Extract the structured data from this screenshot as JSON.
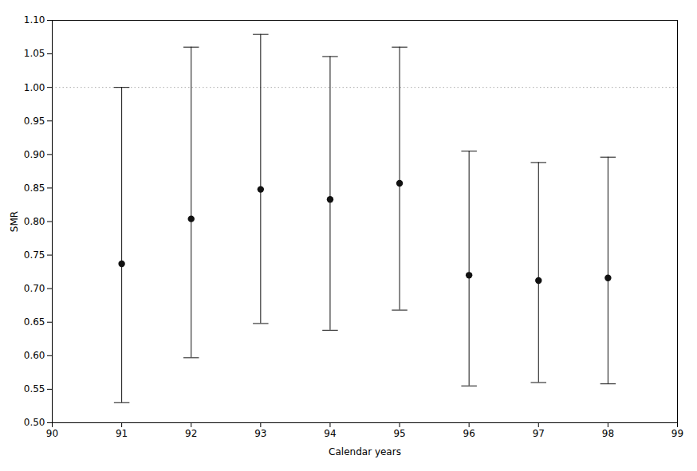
{
  "chart_data": {
    "type": "errorbar",
    "xlabel": "Calendar years",
    "ylabel": "SMR",
    "x": [
      91,
      92,
      93,
      94,
      95,
      96,
      97,
      98
    ],
    "y": [
      0.737,
      0.804,
      0.848,
      0.833,
      0.857,
      0.72,
      0.712,
      0.716
    ],
    "y_low": [
      0.53,
      0.597,
      0.648,
      0.638,
      0.668,
      0.555,
      0.56,
      0.558
    ],
    "y_high": [
      1.0,
      1.06,
      1.079,
      1.046,
      1.06,
      0.905,
      0.888,
      0.896
    ],
    "color": "#111111",
    "marker": "circle",
    "xlim": [
      90,
      99
    ],
    "ylim": [
      0.5,
      1.1
    ],
    "xticks": [
      90,
      91,
      92,
      93,
      94,
      95,
      96,
      97,
      98,
      99
    ],
    "yticks": [
      {
        "value": 0.5,
        "label": "0.50"
      },
      0.55,
      {
        "value": 0.6,
        "label": "0.60"
      },
      0.65,
      {
        "value": 0.7,
        "label": "0.70"
      },
      0.75,
      {
        "value": 0.8,
        "label": "0.80"
      },
      0.85,
      {
        "value": 0.9,
        "label": "0.90"
      },
      0.95,
      {
        "value": 1.0,
        "label": "1.00"
      },
      1.05,
      {
        "value": 1.1,
        "label": "1.10"
      }
    ],
    "reference_line": {
      "y": 1.0,
      "color": "#aaaaaa",
      "line_style": "dotted"
    },
    "grid": false
  }
}
